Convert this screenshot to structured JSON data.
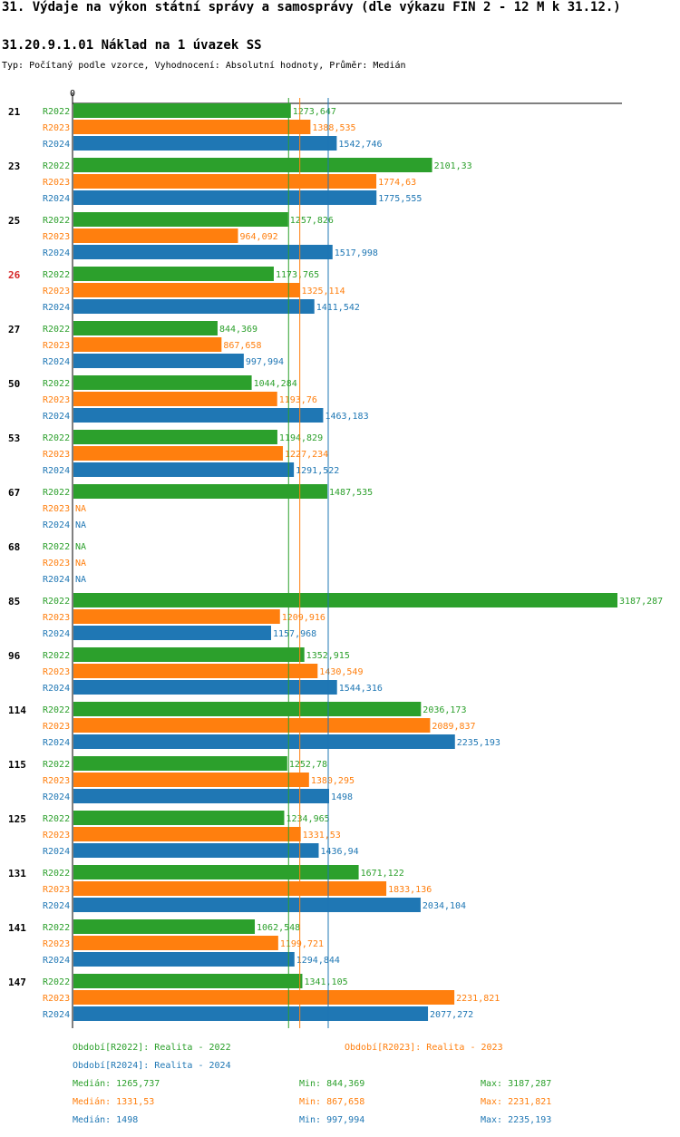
{
  "title": "31. Výdaje na výkon státní správy a samosprávy (dle výkazu FIN 2 - 12 M k 31.12.)",
  "subtitle": "31.20.9.1.01 Náklad na 1 úvazek SS",
  "meta": "Typ: Počítaný podle vzorce, Vyhodnocení: Absolutní hodnoty, Průměr: Medián",
  "chart_data": {
    "type": "bar",
    "orientation": "horizontal",
    "x_min": 0,
    "axis_zero_label": "0",
    "series": [
      {
        "name": "R2022",
        "color": "#2ca02c"
      },
      {
        "name": "R2023",
        "color": "#ff7f0e"
      },
      {
        "name": "R2024",
        "color": "#1f77b4"
      }
    ],
    "groups": [
      {
        "label": "21",
        "highlight": false,
        "values": [
          1273.647,
          1388.535,
          1542.746
        ],
        "labels": [
          "1273,647",
          "1388,535",
          "1542,746"
        ]
      },
      {
        "label": "23",
        "highlight": false,
        "values": [
          2101.33,
          1774.63,
          1775.555
        ],
        "labels": [
          "2101,33",
          "1774,63",
          "1775,555"
        ]
      },
      {
        "label": "25",
        "highlight": false,
        "values": [
          1257.826,
          964.092,
          1517.998
        ],
        "labels": [
          "1257,826",
          "964,092",
          "1517,998"
        ]
      },
      {
        "label": "26",
        "highlight": true,
        "values": [
          1173.765,
          1325.114,
          1411.542
        ],
        "labels": [
          "1173,765",
          "1325,114",
          "1411,542"
        ]
      },
      {
        "label": "27",
        "highlight": false,
        "values": [
          844.369,
          867.658,
          997.994
        ],
        "labels": [
          "844,369",
          "867,658",
          "997,994"
        ]
      },
      {
        "label": "50",
        "highlight": false,
        "values": [
          1044.284,
          1193.76,
          1463.183
        ],
        "labels": [
          "1044,284",
          "1193,76",
          "1463,183"
        ]
      },
      {
        "label": "53",
        "highlight": false,
        "values": [
          1194.829,
          1227.234,
          1291.522
        ],
        "labels": [
          "1194,829",
          "1227,234",
          "1291,522"
        ]
      },
      {
        "label": "67",
        "highlight": false,
        "values": [
          1487.535,
          null,
          null
        ],
        "labels": [
          "1487,535",
          "NA",
          "NA"
        ]
      },
      {
        "label": "68",
        "highlight": false,
        "values": [
          null,
          null,
          null
        ],
        "labels": [
          "NA",
          "NA",
          "NA"
        ]
      },
      {
        "label": "85",
        "highlight": false,
        "values": [
          3187.287,
          1209.916,
          1157.968
        ],
        "labels": [
          "3187,287",
          "1209,916",
          "1157,968"
        ]
      },
      {
        "label": "96",
        "highlight": false,
        "values": [
          1352.915,
          1430.549,
          1544.316
        ],
        "labels": [
          "1352,915",
          "1430,549",
          "1544,316"
        ]
      },
      {
        "label": "114",
        "highlight": false,
        "values": [
          2036.173,
          2089.837,
          2235.193
        ],
        "labels": [
          "2036,173",
          "2089,837",
          "2235,193"
        ]
      },
      {
        "label": "115",
        "highlight": false,
        "values": [
          1252.78,
          1380.295,
          1498
        ],
        "labels": [
          "1252,78",
          "1380,295",
          "1498"
        ]
      },
      {
        "label": "125",
        "highlight": false,
        "values": [
          1234.965,
          1331.53,
          1436.94
        ],
        "labels": [
          "1234,965",
          "1331,53",
          "1436,94"
        ]
      },
      {
        "label": "131",
        "highlight": false,
        "values": [
          1671.122,
          1833.136,
          2034.104
        ],
        "labels": [
          "1671,122",
          "1833,136",
          "2034,104"
        ]
      },
      {
        "label": "141",
        "highlight": false,
        "values": [
          1062.548,
          1199.721,
          1294.844
        ],
        "labels": [
          "1062,548",
          "1199,721",
          "1294,844"
        ]
      },
      {
        "label": "147",
        "highlight": false,
        "values": [
          1341.105,
          2231.821,
          2077.272
        ],
        "labels": [
          "1341,105",
          "2231,821",
          "2077,272"
        ]
      }
    ],
    "medians": [
      1265.737,
      1331.53,
      1498
    ]
  },
  "legend": {
    "period_2022": "Období[R2022]: Realita - 2022",
    "period_2023": "Období[R2023]: Realita - 2023",
    "period_2024": "Období[R2024]: Realita - 2024",
    "stats": [
      {
        "median": "Medián: 1265,737",
        "min": "Min: 844,369",
        "max": "Max: 3187,287"
      },
      {
        "median": "Medián: 1331,53",
        "min": "Min: 867,658",
        "max": "Max: 2231,821"
      },
      {
        "median": "Medián: 1498",
        "min": "Min: 997,994",
        "max": "Max: 2235,193"
      }
    ]
  }
}
